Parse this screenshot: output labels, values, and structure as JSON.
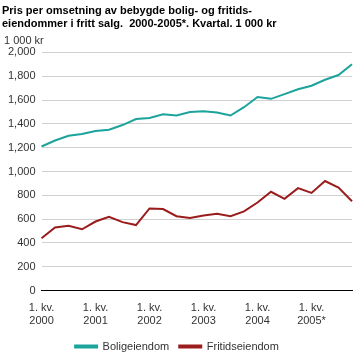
{
  "chart_data": {
    "type": "line",
    "title": [
      "Pris per omsetning av bebygde bolig- og fritids-",
      "eiendommer i fritt salg.  2000-2005*. Kvartal. 1 000 kr"
    ],
    "y_label": "1 000 kr",
    "categories": [
      "1. kv.\n2000",
      null,
      null,
      null,
      "1. kv.\n2001",
      null,
      null,
      null,
      "1. kv.\n2002",
      null,
      null,
      null,
      "1. kv.\n2003",
      null,
      null,
      null,
      "1. kv.\n2004",
      null,
      null,
      null,
      "1. kv.\n2005*",
      null,
      null,
      null
    ],
    "series": [
      {
        "name": "Boligeiendom",
        "color": "#1ba39c",
        "values": [
          1210,
          1260,
          1300,
          1315,
          1340,
          1350,
          1390,
          1440,
          1450,
          1480,
          1470,
          1500,
          1505,
          1495,
          1470,
          1540,
          1625,
          1610,
          1650,
          1690,
          1720,
          1770,
          1810,
          1900
        ]
      },
      {
        "name": "Fritidseiendom",
        "color": "#9b1c1c",
        "values": [
          440,
          530,
          545,
          515,
          580,
          620,
          575,
          550,
          690,
          685,
          625,
          610,
          630,
          645,
          625,
          665,
          740,
          830,
          770,
          860,
          820,
          920,
          865,
          750
        ]
      }
    ],
    "ylim": [
      0,
      2000
    ],
    "yticks": [
      0,
      200,
      400,
      600,
      800,
      1000,
      1200,
      1400,
      1600,
      1800,
      2000
    ],
    "grid": true,
    "legend": "bottom"
  }
}
